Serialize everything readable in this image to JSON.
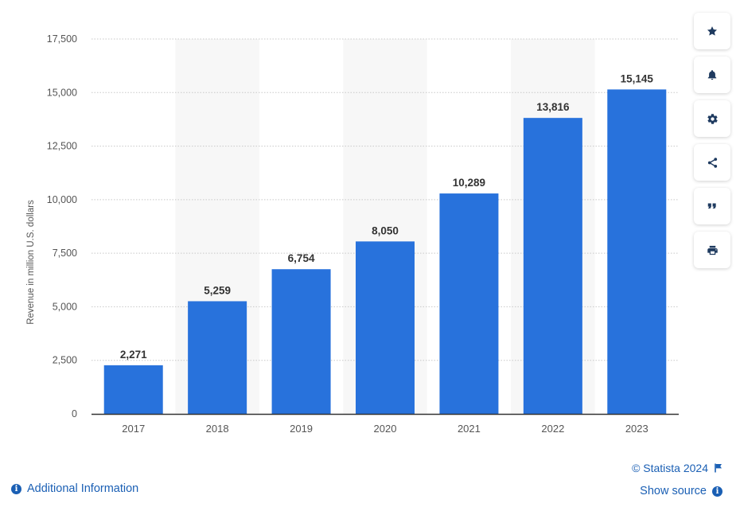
{
  "chart_data": {
    "type": "bar",
    "categories": [
      "2017",
      "2018",
      "2019",
      "2020",
      "2021",
      "2022",
      "2023"
    ],
    "values": [
      2271,
      5259,
      6754,
      8050,
      10289,
      13816,
      15145
    ],
    "value_labels": [
      "2,271",
      "5,259",
      "6,754",
      "8,050",
      "10,289",
      "13,816",
      "15,145"
    ],
    "ylabel": "Revenue in million U.S. dollars",
    "xlabel": "",
    "title": "",
    "ylim": [
      0,
      17500
    ],
    "yticks": [
      0,
      2500,
      5000,
      7500,
      10000,
      12500,
      15000,
      17500
    ],
    "ytick_labels": [
      "0",
      "2,500",
      "5,000",
      "7,500",
      "10,000",
      "12,500",
      "15,000",
      "17,500"
    ],
    "grid": "horizontal dotted",
    "alternating_column_shading": true,
    "colors": {
      "bar": "#2872dc",
      "grid": "#c8c8c8",
      "shade": "#f7f7f7",
      "axis": "#333333",
      "tick_text": "#555555",
      "value_text": "#333333"
    }
  },
  "toolbar": {
    "icons": [
      "star-icon",
      "bell-icon",
      "gear-icon",
      "share-icon",
      "quote-icon",
      "print-icon"
    ]
  },
  "footer": {
    "additional_info": "Additional Information",
    "copyright": "© Statista 2024",
    "show_source": "Show source"
  },
  "colors": {
    "link": "#1a5fb4",
    "icon": "#1e3a5f"
  }
}
